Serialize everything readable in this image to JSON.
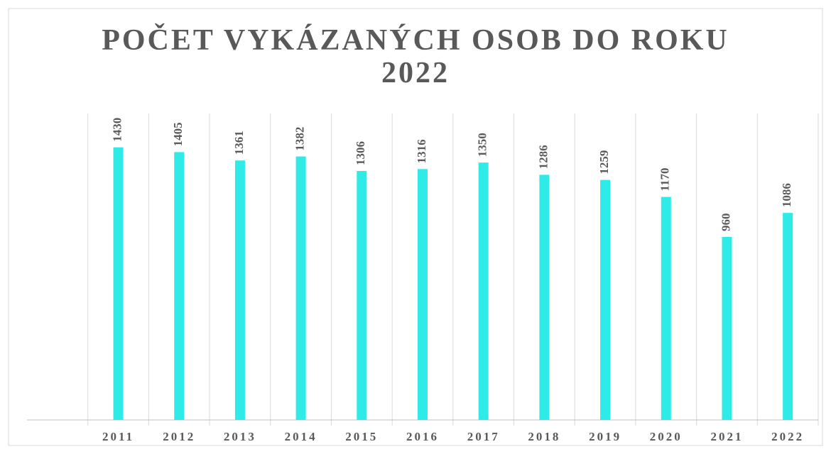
{
  "chart_data": {
    "type": "bar",
    "title": "POČET VYKÁZANÝCH OSOB DO ROKU 2022",
    "categories": [
      null,
      "2011",
      "2012",
      "2013",
      "2014",
      "2015",
      "2016",
      "2017",
      "2018",
      "2019",
      "2020",
      "2021",
      "2022"
    ],
    "values": [
      null,
      1430,
      1405,
      1361,
      1382,
      1306,
      1316,
      1350,
      1286,
      1259,
      1170,
      960,
      1086
    ],
    "color": "#2eebe8",
    "ylim": [
      0,
      1600
    ],
    "grid": false
  }
}
